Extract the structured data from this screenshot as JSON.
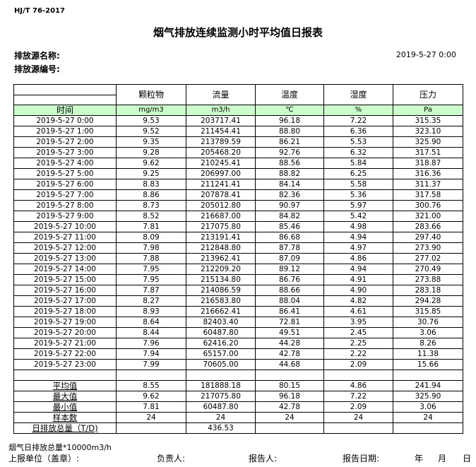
{
  "standard": "HJ/T  76-2017",
  "title": "烟气排放连续监测小时平均值日报表",
  "source_name_label": "排放源名称:",
  "source_no_label": "排放源编号:",
  "report_datetime": "2019-5-27 0:00",
  "table": {
    "headers": [
      "颗粒物",
      "流量",
      "温度",
      "湿度",
      "压力"
    ],
    "time_label": "时间",
    "units": [
      "mg/m3",
      "m3/h",
      "℃",
      "%",
      "Pa"
    ],
    "rows": [
      [
        "2019-5-27 0:00",
        "9.53",
        "203717.41",
        "96.18",
        "7.22",
        "315.35"
      ],
      [
        "2019-5-27 1:00",
        "9.52",
        "211454.41",
        "88.80",
        "6.36",
        "323.10"
      ],
      [
        "2019-5-27 2:00",
        "9.35",
        "213789.59",
        "86.21",
        "5.53",
        "325.90"
      ],
      [
        "2019-5-27 3:00",
        "9.28",
        "205468.20",
        "92.76",
        "6.32",
        "317.51"
      ],
      [
        "2019-5-27 4:00",
        "9.62",
        "210245.41",
        "88.56",
        "5.84",
        "318.87"
      ],
      [
        "2019-5-27 5:00",
        "9.25",
        "206997.00",
        "88.82",
        "6.25",
        "316.36"
      ],
      [
        "2019-5-27 6:00",
        "8.83",
        "211241.41",
        "84.14",
        "5.58",
        "311.37"
      ],
      [
        "2019-5-27 7:00",
        "8.86",
        "207878.41",
        "82.36",
        "5.36",
        "317.58"
      ],
      [
        "2019-5-27 8:00",
        "8.73",
        "205012.80",
        "90.97",
        "5.97",
        "300.76"
      ],
      [
        "2019-5-27 9:00",
        "8.52",
        "216687.00",
        "84.82",
        "5.42",
        "321.00"
      ],
      [
        "2019-5-27 10:00",
        "7.81",
        "217075.80",
        "85.46",
        "4.98",
        "283.66"
      ],
      [
        "2019-5-27 11:00",
        "8.09",
        "213191.41",
        "86.68",
        "4.94",
        "297.40"
      ],
      [
        "2019-5-27 12:00",
        "7.98",
        "212848.80",
        "87.78",
        "4.97",
        "273.90"
      ],
      [
        "2019-5-27 13:00",
        "7.88",
        "213962.41",
        "87.09",
        "4.86",
        "277.02"
      ],
      [
        "2019-5-27 14:00",
        "7.95",
        "212209.20",
        "89.12",
        "4.94",
        "270.49"
      ],
      [
        "2019-5-27 15:00",
        "7.95",
        "215134.80",
        "86.76",
        "4.91",
        "273.88"
      ],
      [
        "2019-5-27 16:00",
        "7.87",
        "214086.59",
        "88.66",
        "4.90",
        "283.18"
      ],
      [
        "2019-5-27 17:00",
        "8.27",
        "216583.80",
        "88.04",
        "4.82",
        "294.28"
      ],
      [
        "2019-5-27 18:00",
        "8.93",
        "216662.41",
        "86.41",
        "4.61",
        "315.85"
      ],
      [
        "2019-5-27 19:00",
        "8.64",
        "82403.40",
        "72.81",
        "3.95",
        "30.76"
      ],
      [
        "2019-5-27 20:00",
        "8.44",
        "60487.80",
        "49.51",
        "2.45",
        "3.06"
      ],
      [
        "2019-5-27 21:00",
        "7.96",
        "62416.20",
        "44.28",
        "2.25",
        "8.26"
      ],
      [
        "2019-5-27 22:00",
        "7.94",
        "65157.00",
        "42.78",
        "2.22",
        "11.38"
      ],
      [
        "2019-5-27 23:00",
        "7.99",
        "70605.00",
        "44.68",
        "2.09",
        "15.66"
      ]
    ],
    "stats": [
      [
        "平均值",
        "8.55",
        "181888.18",
        "80.15",
        "4.86",
        "241.94"
      ],
      [
        "最大值",
        "9.62",
        "217075.80",
        "96.18",
        "7.22",
        "325.90"
      ],
      [
        "最小值",
        "7.81",
        "60487.80",
        "42.78",
        "2.09",
        "3.06"
      ],
      [
        "样本数",
        "24",
        "24",
        "24",
        "24",
        "24"
      ],
      [
        "日排放总量（T/D)",
        "",
        "436.53",
        "",
        "",
        ""
      ]
    ]
  },
  "note": "烟气日排放总量*10000m3/h",
  "footer": {
    "unit": "上报单位（盖章）:",
    "owner": "负责人:",
    "reporter": "报告人:",
    "report_date": "报告日期:",
    "year": "年",
    "month": "月",
    "day": "日"
  }
}
